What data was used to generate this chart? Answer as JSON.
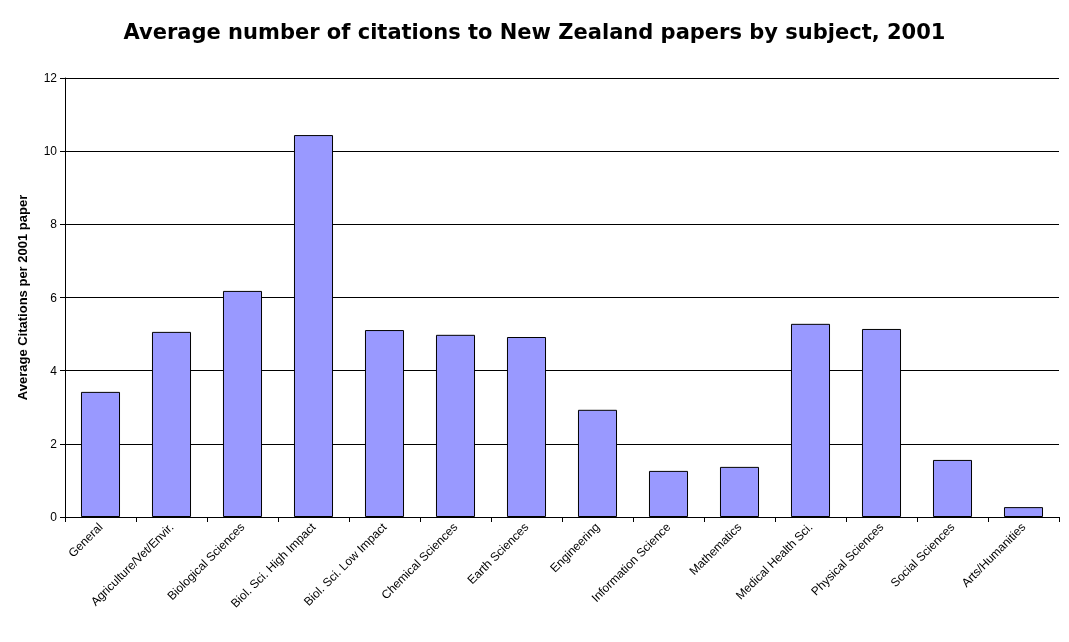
{
  "chart_data": {
    "type": "bar",
    "title": "Average number of citations to New Zealand papers by subject, 2001",
    "ylabel": "Average Citations per 2001 paper",
    "categories": [
      "General",
      "Agriculture/Vet/Envir.",
      "Biological Sciences",
      "Biol. Sci. High Impact",
      "Biol. Sci. Low Impact",
      "Chemical Sciences",
      "Earth Sciences",
      "Engineering",
      "Information Science",
      "Mathematics",
      "Medical Health Sci.",
      "Physical Sciences",
      "Social Sciences",
      "Arts/Humanities"
    ],
    "values": [
      3.42,
      5.06,
      6.18,
      10.44,
      5.11,
      4.98,
      4.92,
      2.93,
      1.26,
      1.37,
      5.28,
      5.14,
      1.56,
      0.27
    ],
    "color": "#9999ff",
    "ylim": [
      0,
      12
    ],
    "yticks": [
      0,
      2,
      4,
      6,
      8,
      10,
      12
    ],
    "grid": "y"
  }
}
